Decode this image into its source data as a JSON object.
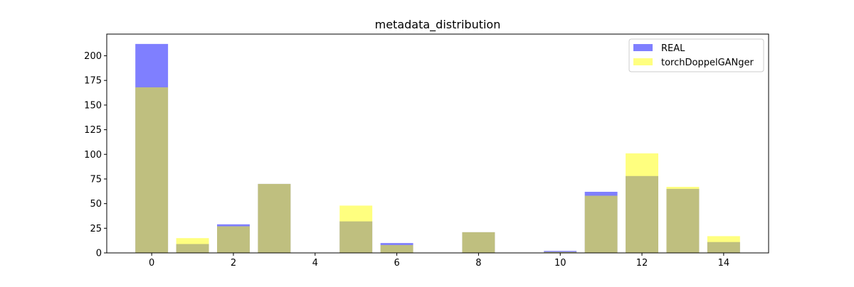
{
  "chart_data": {
    "type": "bar",
    "title": "metadata_distribution",
    "xlabel": "",
    "ylabel": "",
    "x": [
      0,
      1,
      2,
      3,
      4,
      5,
      6,
      7,
      8,
      9,
      10,
      11,
      12,
      13,
      14
    ],
    "xticks": [
      0,
      2,
      4,
      6,
      8,
      10,
      12,
      14
    ],
    "yticks": [
      0,
      25,
      50,
      75,
      100,
      125,
      150,
      175,
      200
    ],
    "xlim": [
      -1.1,
      15.1
    ],
    "ylim": [
      0,
      222
    ],
    "grid": false,
    "legend_position": "top-right",
    "series": [
      {
        "name": "REAL",
        "color": "#0000ff",
        "opacity": 0.5,
        "values": [
          212,
          9,
          29,
          70,
          0,
          32,
          10,
          0,
          21,
          0,
          2,
          62,
          78,
          65,
          11
        ]
      },
      {
        "name": "torchDoppelGANger",
        "color": "#ffff00",
        "opacity": 0.5,
        "values": [
          168,
          15,
          27,
          70,
          0,
          48,
          8,
          0,
          21,
          0,
          1,
          58,
          101,
          67,
          17
        ]
      }
    ]
  }
}
